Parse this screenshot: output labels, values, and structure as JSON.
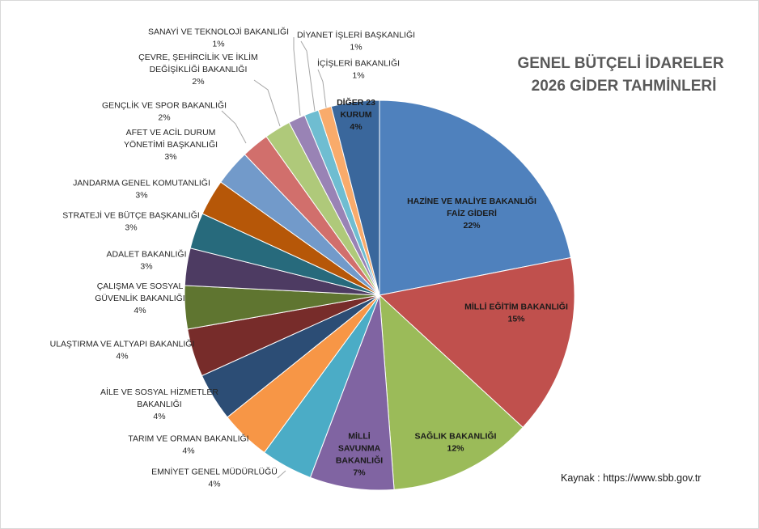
{
  "chart_data": {
    "type": "pie",
    "title": [
      "GENEL BÜTÇELİ İDARELER",
      "2026 GİDER TAHMİNLERİ"
    ],
    "source": "Kaynak : https://www.sbb.gov.tr",
    "slices": [
      {
        "label": [
          "HAZİNE VE MALİYE BAKANLIĞI",
          "FAİZ GİDERİ"
        ],
        "value_label": "22%",
        "value": 22.0,
        "color": "#4F81BD"
      },
      {
        "label": [
          "MİLLİ EĞİTİM BAKANLIĞI"
        ],
        "value_label": "15%",
        "value": 15.0,
        "color": "#C0504D"
      },
      {
        "label": [
          "SAĞLIK BAKANLIĞI"
        ],
        "value_label": "12%",
        "value": 12.0,
        "color": "#9BBB59"
      },
      {
        "label": [
          "MİLLİ",
          "SAVUNMA",
          "BAKANLIĞI"
        ],
        "value_label": "7%",
        "value": 7.0,
        "color": "#8064A2"
      },
      {
        "label": [
          "EMNİYET GENEL MÜDÜRLÜĞÜ"
        ],
        "value_label": "4%",
        "value": 4.3,
        "color": "#4BACC6"
      },
      {
        "label": [
          "TARIM VE ORMAN BAKANLIĞI"
        ],
        "value_label": "4%",
        "value": 4.2,
        "color": "#F79646"
      },
      {
        "label": [
          "AİLE VE SOSYAL HİZMETLER",
          "BAKANLIĞI"
        ],
        "value_label": "4%",
        "value": 4.0,
        "color": "#2C4D75"
      },
      {
        "label": [
          "ULAŞTIRMA VE ALTYAPI BAKANLIĞI"
        ],
        "value_label": "4%",
        "value": 4.0,
        "color": "#772C2A"
      },
      {
        "label": [
          "ÇALIŞMA VE SOSYAL",
          "GÜVENLİK BAKANLIĞI"
        ],
        "value_label": "4%",
        "value": 3.6,
        "color": "#5F7530"
      },
      {
        "label": [
          "ADALET BAKANLIĞI"
        ],
        "value_label": "3%",
        "value": 3.1,
        "color": "#4D3B62"
      },
      {
        "label": [
          "STRATEJİ VE BÜTÇE BAŞKANLIĞI"
        ],
        "value_label": "3%",
        "value": 3.0,
        "color": "#276A7C"
      },
      {
        "label": [
          "JANDARMA GENEL KOMUTANLIĞI"
        ],
        "value_label": "3%",
        "value": 3.0,
        "color": "#B65708"
      },
      {
        "label": [
          "AFET VE ACİL DURUM",
          "YÖNETİMİ BAŞKANLIĞI"
        ],
        "value_label": "3%",
        "value": 3.0,
        "color": "#729ACA"
      },
      {
        "label": [
          "GENÇLİK VE SPOR BAKANLIĞI"
        ],
        "value_label": "2%",
        "value": 2.3,
        "color": "#D16F6C"
      },
      {
        "label": [
          "ÇEVRE, ŞEHİRCİLİK VE İKLİM",
          "DEĞİŞİKLİĞİ BAKANLIĞI"
        ],
        "value_label": "2%",
        "value": 2.2,
        "color": "#AFC97A"
      },
      {
        "label": [
          "SANAYİ VE TEKNOLOJİ BAKANLIĞI"
        ],
        "value_label": "1%",
        "value": 1.4,
        "color": "#9983B5"
      },
      {
        "label": [
          "DİYANET İŞLERİ BAŞKANLIĞI"
        ],
        "value_label": "1%",
        "value": 1.2,
        "color": "#6FBDD1"
      },
      {
        "label": [
          "İÇİŞLERİ BAKANLIĞI"
        ],
        "value_label": "1%",
        "value": 1.1,
        "color": "#F9AB6B"
      },
      {
        "label": [
          "DİĞER 23",
          "KURUM"
        ],
        "value_label": "4%",
        "value": 4.0,
        "color": "#3A679C"
      }
    ]
  }
}
